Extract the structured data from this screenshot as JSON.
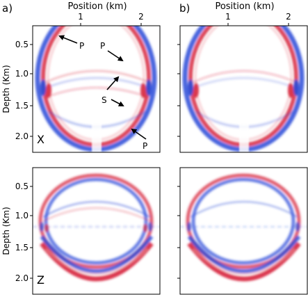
{
  "figure": {
    "panel_letters": [
      "a)",
      "b)"
    ],
    "top_axis_label": "Position (km)",
    "x_ticks": [
      "1",
      "2"
    ],
    "y_label": "Depth (Km)",
    "y_ticks": [
      "0.5",
      "1.0",
      "1.5",
      "2.0"
    ],
    "row_labels": [
      "X",
      "Z"
    ],
    "annotations": [
      "P",
      "P",
      "S",
      "P"
    ],
    "colors": {
      "positive": "#d7263d",
      "negative": "#2a4ad8",
      "frame": "#000000"
    }
  },
  "chart_data": {
    "type": "heatmap",
    "colormap": "seismic (blue-white-red)",
    "x_axis": {
      "label": "Position (km)",
      "ticks": [
        1,
        2
      ],
      "range": [
        0.05,
        2.3
      ]
    },
    "y_axis": {
      "label": "Depth (Km)",
      "ticks": [
        0.5,
        1.0,
        1.5,
        2.0
      ],
      "range": [
        0.25,
        2.3
      ]
    },
    "panels": [
      {
        "column": "a)",
        "component": "X"
      },
      {
        "column": "b)",
        "component": ""
      },
      {
        "column": "a)",
        "component": "Z"
      },
      {
        "column": "b)",
        "component": ""
      }
    ],
    "annotations": [
      {
        "text": "P",
        "x": 0.9,
        "y": 0.5
      },
      {
        "text": "P",
        "x": 1.7,
        "y": 0.85
      },
      {
        "text": "S",
        "x": 1.6,
        "y": 1.3
      },
      {
        "text": "P",
        "x": 1.95,
        "y": 2.05
      }
    ]
  }
}
